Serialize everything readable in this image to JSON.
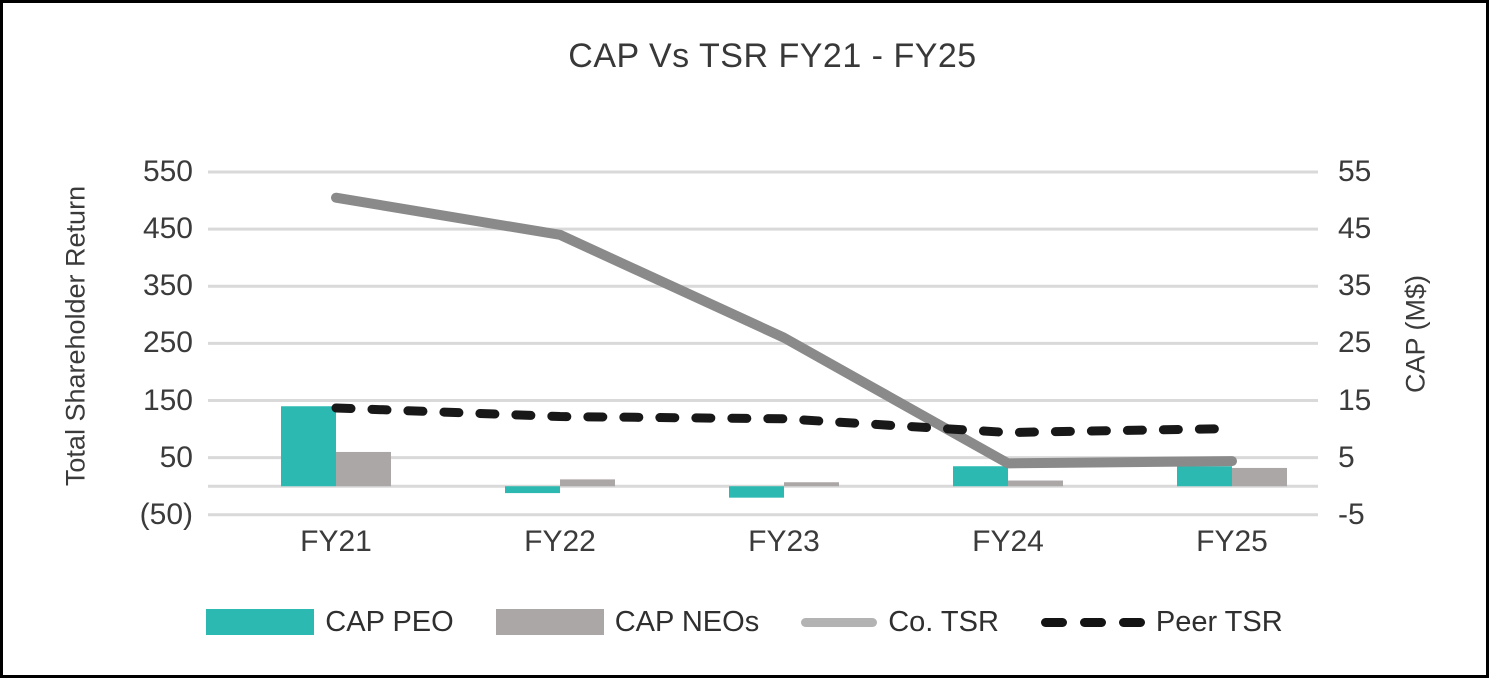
{
  "page": {
    "background": "#ffffff",
    "border_color": "#000000"
  },
  "chart_data": {
    "type": "combo",
    "title": "CAP Vs TSR FY21 - FY25",
    "categories": [
      "FY21",
      "FY22",
      "FY23",
      "FY24",
      "FY25"
    ],
    "series": [
      {
        "name": "CAP PEO",
        "type": "bar",
        "axis": "right",
        "color": "#2cb9b1",
        "legend_color": "#2cb9b1",
        "dashed": false,
        "values": [
          14,
          -1.2,
          -2,
          3.5,
          3.5
        ]
      },
      {
        "name": "CAP NEOs",
        "type": "bar",
        "axis": "right",
        "color": "#aca7a7",
        "legend_color": "#aca7a7",
        "dashed": false,
        "values": [
          6,
          1.2,
          0.7,
          1,
          3.2
        ]
      },
      {
        "name": "Co. TSR",
        "type": "line",
        "axis": "left",
        "color": "#8a8a8a",
        "legend_color": "#b3b3b3",
        "dashed": false,
        "values": [
          505,
          440,
          260,
          40,
          44
        ]
      },
      {
        "name": "Peer TSR",
        "type": "line",
        "axis": "left",
        "color": "#181818",
        "legend_color": "#141414",
        "dashed": true,
        "values": [
          137,
          122,
          118,
          94,
          101
        ]
      }
    ],
    "left_axis": {
      "title": "Total Shareholder Return",
      "min": -50,
      "max": 550,
      "step": 100,
      "ticks": [
        "550",
        "450",
        "350",
        "250",
        "150",
        "50",
        "(50)"
      ]
    },
    "right_axis": {
      "title": "CAP (M$)",
      "min": -5,
      "max": 55,
      "step": 10,
      "ticks": [
        "55",
        "45",
        "35",
        "25",
        "15",
        "5",
        "-5"
      ]
    },
    "grid": true,
    "legend_position": "bottom",
    "colors": {
      "gridline": "#d9d9d9",
      "axis_line": "#d9d9d9",
      "text": "#3b3b3b"
    }
  }
}
